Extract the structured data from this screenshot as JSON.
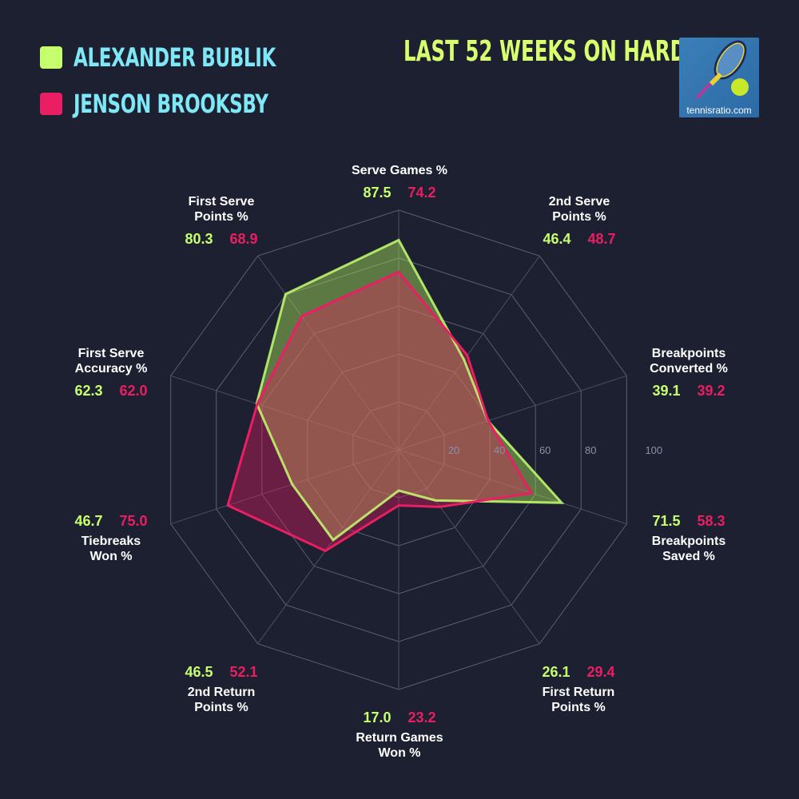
{
  "legend": [
    {
      "name": "ALEXANDER BUBLIK",
      "color": "#c6ff6e"
    },
    {
      "name": "JENSON BROOKSBY",
      "color": "#e91e63"
    }
  ],
  "header": {
    "title": "LAST 52 WEEKS ON HARD",
    "logo_text": "tennisratio.com"
  },
  "chart_data": {
    "type": "radar",
    "title": "LAST 52 WEEKS ON HARD",
    "range": [
      0,
      100
    ],
    "ticks": [
      "20",
      "40",
      "60",
      "80",
      "100"
    ],
    "axes": [
      [
        "Serve Games %"
      ],
      [
        "2nd Serve",
        "Points %"
      ],
      [
        "Breakpoints",
        "Converted %"
      ],
      [
        "Breakpoints",
        "Saved %"
      ],
      [
        "First Return",
        "Points %"
      ],
      [
        "Return Games",
        "Won %"
      ],
      [
        "2nd Return",
        "Points %"
      ],
      [
        "Tiebreaks",
        "Won %"
      ],
      [
        "First Serve",
        "Accuracy %"
      ],
      [
        "First Serve",
        "Points %"
      ]
    ],
    "series": [
      {
        "name": "ALEXANDER BUBLIK",
        "color": "#c6ff6e",
        "values": [
          87.5,
          46.4,
          39.1,
          71.5,
          26.1,
          17.0,
          46.5,
          46.7,
          62.3,
          80.3
        ]
      },
      {
        "name": "JENSON BROOKSBY",
        "color": "#e91e63",
        "values": [
          74.2,
          48.7,
          39.2,
          58.3,
          29.4,
          23.2,
          52.1,
          75.0,
          62.0,
          68.9
        ]
      }
    ]
  }
}
